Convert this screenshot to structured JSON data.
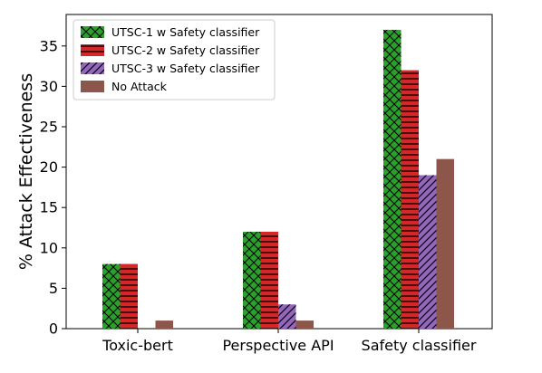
{
  "chart_data": {
    "type": "bar",
    "categories": [
      "Toxic-bert",
      "Perspective API",
      "Safety classifier"
    ],
    "series": [
      {
        "name": "UTSC-1 w Safety classifier",
        "values": [
          8,
          12,
          37
        ],
        "color": "#2ca02c",
        "hatch": "crosshatch"
      },
      {
        "name": "UTSC-2 w Safety classifier",
        "values": [
          8,
          12,
          32
        ],
        "color": "#d62728",
        "hatch": "horizontal"
      },
      {
        "name": "UTSC-3 w Safety classifier",
        "values": [
          0,
          3,
          19
        ],
        "color": "#9467bd",
        "hatch": "diagonal"
      },
      {
        "name": "No Attack",
        "values": [
          1,
          1,
          21
        ],
        "color": "#8c564b",
        "hatch": "none"
      }
    ],
    "title": "",
    "xlabel": "",
    "ylabel": "% Attack Effectiveness",
    "ylim": [
      0,
      38.9
    ],
    "yticks": [
      0,
      5,
      10,
      15,
      20,
      25,
      30,
      35
    ],
    "grid": false,
    "legend_position": "top-left"
  }
}
